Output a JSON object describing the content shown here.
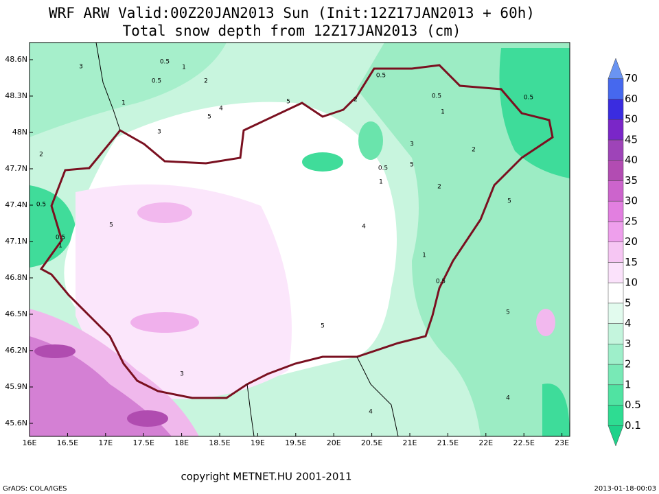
{
  "header": {
    "line1": "WRF ARW Valid:00Z20JAN2013 Sun (Init:12Z17JAN2013 + 60h)",
    "line2": "Total snow depth from 12Z17JAN2013 (cm)"
  },
  "map": {
    "lat_labels": [
      "48.6N",
      "48.3N",
      "48N",
      "47.7N",
      "47.4N",
      "47.1N",
      "46.8N",
      "46.5N",
      "46.2N",
      "45.9N",
      "45.6N"
    ],
    "lon_labels": [
      "16E",
      "16.5E",
      "17E",
      "17.5E",
      "18E",
      "18.5E",
      "19E",
      "19.5E",
      "20E",
      "20.5E",
      "21E",
      "21.5E",
      "22E",
      "22.5E",
      "23E"
    ],
    "contour_labels": [
      "3",
      "0.5",
      "1",
      "2",
      "5",
      "4",
      "3",
      "0.5",
      "1",
      "0.5",
      "5",
      "2",
      "0.5",
      "1",
      "0.5",
      "5",
      "3",
      "1",
      "5",
      "0.5",
      "2",
      "0.5",
      "1",
      "0.5",
      "5",
      "2",
      "4",
      "5",
      "3",
      "0.5",
      "1",
      "2",
      "5",
      "4",
      "4"
    ]
  },
  "colorbar": {
    "labels": [
      "0.1",
      "0.5",
      "1",
      "2",
      "3",
      "4",
      "5",
      "10",
      "15",
      "20",
      "25",
      "30",
      "35",
      "40",
      "45",
      "50",
      "60",
      "70"
    ],
    "colors": [
      "#1ed28a",
      "#2edc92",
      "#50e3a2",
      "#78e9b6",
      "#9eefca",
      "#c4f5dd",
      "#e2fbee",
      "#ffffff",
      "#fbe2fb",
      "#f6c6f3",
      "#ee9fec",
      "#e27fe0",
      "#cc64cc",
      "#b24cb2",
      "#9e44b8",
      "#7a26c8",
      "#3a2ce0",
      "#4668ee",
      "#6a94f2"
    ]
  },
  "footer": {
    "copyright": "copyright METNET.HU 2001-2011",
    "software": "GrADS: COLA/IGES",
    "timestamp": "2013-01-18-00:03"
  }
}
